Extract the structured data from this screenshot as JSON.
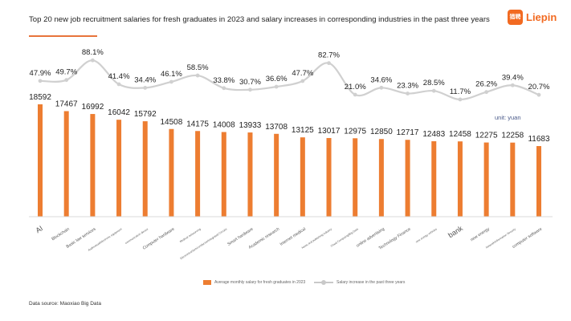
{
  "header": {
    "title": "Top 20 new job recruitment salaries for fresh graduates in 2023 and salary increases in corresponding industries in the past three years",
    "logo_text": "Liepin",
    "logo_mark": "猎聘",
    "accent_color": "#e8743b"
  },
  "footer": {
    "source": "Data source: Maoxiao Big Data"
  },
  "chart_data": {
    "type": "bar",
    "title": "Top 20 new job recruitment salaries for fresh graduates in 2023 and salary increases in corresponding industries in the past three years",
    "unit_label": "unit: yuan",
    "categories": [
      "AI",
      "Blockchain",
      "Basic law services",
      "Audiovisual/electronic equipment",
      "communication device",
      "Computer hardware",
      "Medical outsourcing",
      "Electronics/Semiconductor/Integrated Circuits",
      "Smart hardware",
      "Academic research",
      "Internet medical",
      "News and publishing industry",
      "Cloud Computing/Big Data",
      "online advertising",
      "Technology Finance",
      "new energy vehicles",
      "bank",
      "new energy",
      "Network/Information Security",
      "computer software"
    ],
    "series": [
      {
        "name": "Average monthly salary for fresh graduates in 2023",
        "type": "bar",
        "color": "#ed7d31",
        "values": [
          18592,
          17467,
          16992,
          16042,
          15792,
          14508,
          14175,
          14008,
          13933,
          13708,
          13125,
          13017,
          12975,
          12850,
          12717,
          12483,
          12458,
          12275,
          12258,
          11683
        ]
      },
      {
        "name": "Salary increase in the past three years",
        "type": "line",
        "color": "#d0d0d0",
        "values": [
          47.9,
          49.7,
          88.1,
          41.4,
          34.4,
          46.1,
          58.5,
          33.8,
          30.7,
          36.6,
          47.7,
          82.7,
          21.0,
          34.6,
          23.3,
          28.5,
          11.7,
          26.2,
          39.4,
          20.7
        ],
        "labels": [
          "47.9%",
          "49.7%",
          "88.1%",
          "41.4%",
          "34.4%",
          "46.1%",
          "58.5%",
          "33.8%",
          "30.7%",
          "36.6%",
          "47.7%",
          "82.7%",
          "21.0%",
          "34.6%",
          "23.3%",
          "28.5%",
          "11.7%",
          "26.2%",
          "39.4%",
          "20.7%"
        ]
      }
    ],
    "legend": [
      "Average monthly salary for fresh graduates in 2023",
      "Salary increase in the past three years"
    ],
    "legend_position": "bottom",
    "grid": false
  }
}
